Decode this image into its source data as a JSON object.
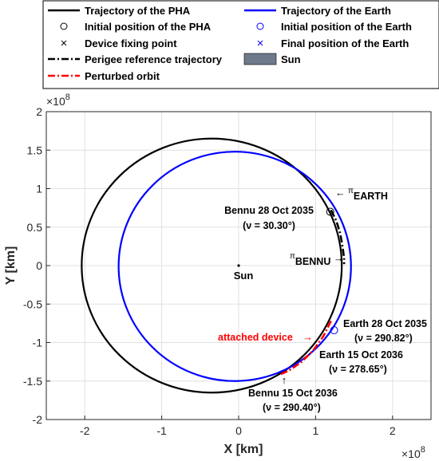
{
  "chart_data": {
    "type": "line",
    "xlabel": "X [km]",
    "ylabel": "Y [km]",
    "x_exponent_label": "×10",
    "x_exponent": "8",
    "y_exponent_label": "×10",
    "y_exponent": "8",
    "xlim": [
      -2.5,
      2.5
    ],
    "ylim": [
      -2,
      2
    ],
    "xticks": [
      -2,
      -1,
      0,
      1,
      2
    ],
    "xtick_labels": [
      "-2",
      "-1",
      "0",
      "1",
      "2"
    ],
    "yticks": [
      -2,
      -1.5,
      -1,
      -0.5,
      0,
      0.5,
      1,
      1.5,
      2
    ],
    "ytick_labels": [
      "-2",
      "-1.5",
      "-1",
      "-0.5",
      "0",
      "0.5",
      "1",
      "1.5",
      "2"
    ],
    "grid": true,
    "legend": {
      "placement": "top",
      "entries": [
        {
          "label": "Trajectory of the PHA",
          "marker": "solid-line",
          "color": "#000000"
        },
        {
          "label": "Trajectory of the Earth",
          "marker": "solid-line",
          "color": "#0000ff"
        },
        {
          "label": "Initial position of the PHA",
          "marker": "open-circle",
          "color": "#000000"
        },
        {
          "label": "Initial position of the Earth",
          "marker": "open-circle",
          "color": "#0000ff"
        },
        {
          "label": "Device fixing point",
          "marker": "cross",
          "color": "#000000"
        },
        {
          "label": "Final position of the Earth",
          "marker": "cross",
          "color": "#0000ff"
        },
        {
          "label": "Perigee reference trajectory",
          "marker": "dash-dot-line",
          "color": "#000000"
        },
        {
          "label": "Sun",
          "marker": "filled-box",
          "color": "#6e7a8c"
        },
        {
          "label": "Perturbed orbit",
          "marker": "dash-dot-line",
          "color": "#ff0000"
        }
      ]
    },
    "series": [
      {
        "name": "Trajectory of the PHA",
        "kind": "ellipse",
        "center": [
          -0.35,
          0
        ],
        "radii": [
          1.69,
          1.65
        ],
        "color": "#000000"
      },
      {
        "name": "Trajectory of the Earth",
        "kind": "ellipse",
        "center": [
          -0.05,
          -0.01
        ],
        "radii": [
          1.51,
          1.49
        ],
        "color": "#0000ff"
      },
      {
        "name": "Perigee reference trajectory",
        "kind": "path",
        "color": "#000000",
        "points": [
          [
            1.2,
            0.72
          ],
          [
            1.27,
            0.58
          ],
          [
            1.32,
            0.42
          ],
          [
            1.35,
            0.25
          ],
          [
            1.37,
            0.1
          ],
          [
            1.37,
            0.02
          ]
        ]
      },
      {
        "name": "Perturbed orbit",
        "kind": "path",
        "color": "#ff0000",
        "points": [
          [
            1.2,
            -0.72
          ],
          [
            1.1,
            -0.92
          ],
          [
            0.97,
            -1.1
          ],
          [
            0.82,
            -1.25
          ],
          [
            0.66,
            -1.36
          ],
          [
            0.55,
            -1.41
          ]
        ]
      }
    ],
    "markers": [
      {
        "name": "Initial position of the PHA",
        "x": 1.19,
        "y": 0.7,
        "shape": "open-circle",
        "color": "#000000"
      },
      {
        "name": "Initial position of the Earth",
        "x": 1.24,
        "y": -0.84,
        "shape": "open-circle",
        "color": "#0000ff"
      },
      {
        "name": "Sun",
        "x": 0,
        "y": 0,
        "shape": "dot",
        "color": "#000000"
      }
    ],
    "annotations": [
      {
        "id": "pi-earth",
        "symbol": "π",
        "sub": "EARTH",
        "arrow": "←"
      },
      {
        "id": "pi-bennu",
        "symbol": "π",
        "sub": "BENNU",
        "arrow": "→"
      },
      {
        "id": "bennu-start-1",
        "text": "Bennu 28 Oct 2035"
      },
      {
        "id": "bennu-start-2",
        "text": "(ν = 30.30°)"
      },
      {
        "id": "sun",
        "text": "Sun"
      },
      {
        "id": "earth-start-1",
        "text": "Earth 28 Oct 2035"
      },
      {
        "id": "earth-start-2",
        "text": "(ν = 290.82°)"
      },
      {
        "id": "attached",
        "text": "attached device"
      },
      {
        "id": "attached-arrow",
        "text": "→"
      },
      {
        "id": "earth-end-1",
        "text": "Earth 15 Oct 2036"
      },
      {
        "id": "earth-end-2",
        "text": "(ν = 278.65°)"
      },
      {
        "id": "bennu-end-arrow",
        "text": "↑"
      },
      {
        "id": "bennu-end-1",
        "text": "Bennu 15 Oct 2036"
      },
      {
        "id": "bennu-end-2",
        "text": "(ν = 290.40°)"
      }
    ]
  }
}
